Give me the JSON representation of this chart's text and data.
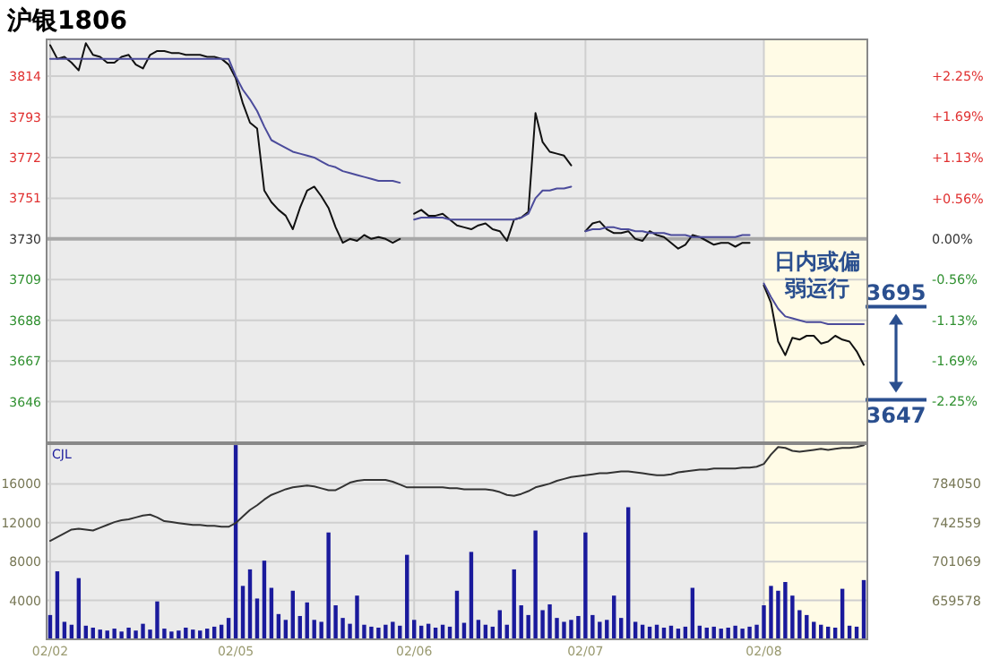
{
  "chart_data": [
    {
      "type": "line",
      "title": "沪银1806",
      "categories": [
        null,
        null,
        null,
        null,
        null,
        null,
        null,
        null,
        null,
        null,
        null,
        null,
        null,
        null,
        null,
        null,
        null,
        null,
        null,
        null,
        null,
        null,
        null,
        null,
        null,
        null,
        null,
        null,
        null,
        null,
        null,
        null,
        null,
        null,
        null,
        null,
        null,
        null,
        null,
        null,
        null,
        null,
        null,
        null,
        null,
        null,
        null,
        null,
        null,
        null,
        null,
        null,
        null,
        null,
        null,
        null,
        null,
        null,
        null,
        null,
        null,
        null,
        null,
        null,
        null,
        null,
        null,
        null,
        null,
        null,
        null,
        null,
        null,
        null,
        null,
        null,
        null,
        null,
        null,
        null,
        null,
        null,
        null,
        null,
        null,
        null,
        null,
        null,
        null,
        null,
        null,
        null,
        null,
        null,
        null,
        null,
        null,
        null,
        null,
        null,
        null,
        null,
        null,
        null,
        null,
        null,
        null,
        null,
        null,
        null,
        null,
        null,
        null,
        null,
        null
      ],
      "ylim": [
        3625,
        3833
      ],
      "yticks": [
        3646,
        3667,
        3688,
        3709,
        3730,
        3751,
        3772,
        3793,
        3814
      ],
      "y2lim": [
        -2.815,
        2.76
      ],
      "y2ticks": [
        {
          "value": -2.25,
          "label": "-2.25%"
        },
        {
          "value": -1.69,
          "label": "-1.69%"
        },
        {
          "value": -1.13,
          "label": "-1.13%"
        },
        {
          "value": -0.56,
          "label": "-0.56%"
        },
        {
          "value": 0,
          "label": "0.00%"
        },
        {
          "value": 0.56,
          "label": "+0.56%"
        },
        {
          "value": 1.13,
          "label": "+1.13%"
        },
        {
          "value": 1.69,
          "label": "+1.69%"
        },
        {
          "value": 2.25,
          "label": "+2.25%"
        }
      ],
      "tick_labels": "y",
      "grid": true,
      "ref_lines": [
        {
          "axis": "y",
          "value": 3730,
          "color": "#a8a8a8"
        },
        {
          "axis": "y",
          "value": 3695,
          "label": "3695",
          "color": "#2a4f8f"
        },
        {
          "axis": "y",
          "value": 3647,
          "label": "3647",
          "color": "#2a4f8f"
        }
      ],
      "series": [
        {
          "color": "#111111",
          "values": [
            3830,
            3823,
            3824,
            3821,
            3817,
            3831,
            3825,
            3824,
            3821,
            3821,
            3824,
            3825,
            3820,
            3818,
            3825,
            3827,
            3827,
            3826,
            3826,
            3825,
            3825,
            3825,
            3824,
            3824,
            3823,
            3820,
            3813,
            3800,
            3790,
            3787,
            3755,
            3749,
            3745,
            3742,
            3735,
            3746,
            3755,
            3757,
            3752,
            3746,
            3736,
            3728,
            3730,
            3729,
            3732,
            3730,
            3731,
            3730,
            3728,
            3730,
            null,
            3743,
            3745,
            3742,
            3742,
            3743,
            3740,
            3737,
            3736,
            3735,
            3737,
            3738,
            3735,
            3734,
            3729,
            3740,
            3741,
            3744,
            3795,
            3780,
            3775,
            3774,
            3773,
            3768,
            null,
            3734,
            3738,
            3739,
            3735,
            3733,
            3733,
            3734,
            3730,
            3729,
            3734,
            3732,
            3731,
            3728,
            3725,
            3727,
            3732,
            3731,
            3729,
            3727,
            3728,
            3728,
            3726,
            3728,
            3728,
            null,
            3706,
            3697,
            3677,
            3670,
            3679,
            3678,
            3680,
            3680,
            3676,
            3677,
            3680,
            3678,
            3677,
            3672,
            3665
          ]
        },
        {
          "color": "#4b4b9b",
          "values": [
            3823,
            3823,
            3823,
            3823,
            3823,
            3823,
            3823,
            3823,
            3823,
            3823,
            3823,
            3823,
            3823,
            3823,
            3823,
            3823,
            3823,
            3823,
            3823,
            3823,
            3823,
            3823,
            3823,
            3823,
            3823,
            3823,
            3814,
            3807,
            3802,
            3796,
            3788,
            3781,
            3779,
            3777,
            3775,
            3774,
            3773,
            3772,
            3770,
            3768,
            3767,
            3765,
            3764,
            3763,
            3762,
            3761,
            3760,
            3760,
            3760,
            3759,
            null,
            3740,
            3741,
            3741,
            3741,
            3741,
            3740,
            3740,
            3740,
            3740,
            3740,
            3740,
            3740,
            3740,
            3740,
            3740,
            3741,
            3743,
            3751,
            3755,
            3755,
            3756,
            3756,
            3757,
            null,
            3734,
            3735,
            3735,
            3736,
            3736,
            3735,
            3735,
            3734,
            3734,
            3733,
            3733,
            3733,
            3732,
            3732,
            3732,
            3731,
            3731,
            3731,
            3731,
            3731,
            3731,
            3731,
            3732,
            3732,
            null,
            3707,
            3700,
            3694,
            3690,
            3689,
            3688,
            3687,
            3687,
            3687,
            3686,
            3686,
            3686,
            3686,
            3686,
            3686
          ]
        }
      ],
      "annotations": [
        "日内或偏弱运行"
      ]
    },
    {
      "type": "bar",
      "categories": [
        "02/02",
        null,
        null,
        null,
        null,
        null,
        null,
        null,
        null,
        null,
        null,
        null,
        null,
        null,
        null,
        null,
        null,
        null,
        null,
        null,
        null,
        null,
        null,
        null,
        null,
        null,
        "02/05",
        null,
        null,
        null,
        null,
        null,
        null,
        null,
        null,
        null,
        null,
        null,
        null,
        null,
        null,
        null,
        null,
        null,
        null,
        null,
        null,
        null,
        null,
        null,
        null,
        "02/06",
        null,
        null,
        null,
        null,
        null,
        null,
        null,
        null,
        null,
        null,
        null,
        null,
        null,
        null,
        null,
        null,
        null,
        null,
        null,
        null,
        null,
        null,
        null,
        "02/07",
        null,
        null,
        null,
        null,
        null,
        null,
        null,
        null,
        null,
        null,
        null,
        null,
        null,
        null,
        null,
        null,
        null,
        null,
        null,
        null,
        null,
        null,
        null,
        null,
        "02/08",
        null,
        null,
        null,
        null,
        null,
        null,
        null,
        null,
        null,
        null,
        null,
        null,
        null,
        null
      ],
      "ylim": [
        0,
        20100
      ],
      "yticks": [
        4000,
        8000,
        12000,
        16000
      ],
      "y2lim": [
        618087,
        826110
      ],
      "y2ticks": [
        659578,
        701069,
        742559,
        784050
      ],
      "grid": true,
      "series": [
        {
          "name": "CJL",
          "color": "#1a1a9c",
          "values": [
            2500,
            7000,
            1800,
            1500,
            6300,
            1400,
            1200,
            1000,
            900,
            1100,
            800,
            1200,
            900,
            1600,
            1000,
            3900,
            1100,
            800,
            900,
            1200,
            1000,
            900,
            1100,
            1300,
            1500,
            2200,
            20000,
            5500,
            7200,
            4200,
            8100,
            5300,
            2600,
            2000,
            5000,
            2400,
            3800,
            2000,
            1800,
            11000,
            3500,
            2200,
            1600,
            4500,
            1500,
            1300,
            1200,
            1500,
            1800,
            1400,
            8700,
            2000,
            1400,
            1600,
            1200,
            1500,
            1300,
            5000,
            1700,
            9000,
            2000,
            1500,
            1300,
            3000,
            1500,
            7200,
            3500,
            2500,
            11200,
            3000,
            3600,
            2200,
            1800,
            2000,
            2400,
            11000,
            2500,
            1800,
            2000,
            4500,
            2200,
            13600,
            1800,
            1500,
            1300,
            1500,
            1200,
            1400,
            1100,
            1300,
            5300,
            1400,
            1200,
            1300,
            1100,
            1200,
            1400,
            1100,
            1300,
            1500,
            3500,
            5500,
            5000,
            5900,
            4500,
            3000,
            2500,
            1800,
            1500,
            1300,
            1200,
            5200,
            1400,
            1300,
            6100
          ]
        },
        {
          "type": "line",
          "axis": "y2",
          "color": "#333333",
          "values": [
            723000,
            727000,
            731000,
            735000,
            736000,
            735000,
            734000,
            737000,
            740000,
            743000,
            745000,
            746000,
            748000,
            750000,
            751000,
            748000,
            744000,
            743000,
            742000,
            741000,
            740000,
            740000,
            739000,
            739000,
            738000,
            738000,
            742000,
            749000,
            756000,
            761000,
            767000,
            772000,
            775000,
            778000,
            780000,
            781000,
            782000,
            781000,
            779000,
            777000,
            777000,
            781000,
            785000,
            787000,
            788000,
            788000,
            788000,
            788000,
            786000,
            783000,
            780000,
            780000,
            780000,
            780000,
            780000,
            780000,
            779000,
            779000,
            778000,
            778000,
            778000,
            778000,
            777000,
            775000,
            772000,
            771000,
            773000,
            776000,
            780000,
            782000,
            784000,
            787000,
            789000,
            791000,
            792000,
            793000,
            794000,
            795000,
            795000,
            796000,
            797000,
            797000,
            796000,
            795000,
            794000,
            793000,
            793000,
            794000,
            796000,
            797000,
            798000,
            799000,
            799000,
            800000,
            800000,
            800000,
            800000,
            801000,
            801000,
            802000,
            805000,
            815000,
            823000,
            822000,
            819000,
            818000,
            819000,
            820000,
            821000,
            820000,
            821000,
            822000,
            822000,
            823000,
            825000
          ]
        }
      ]
    }
  ]
}
